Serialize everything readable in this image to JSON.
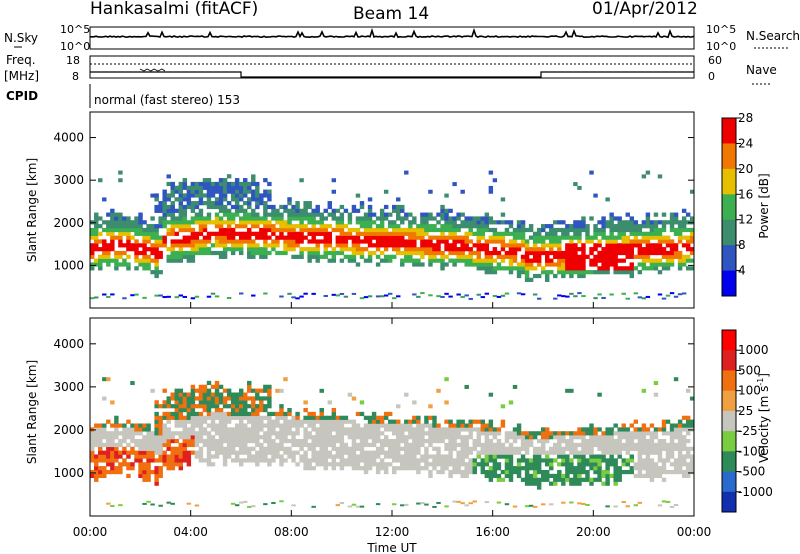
{
  "header": {
    "station": "Hankasalmi (fitACF)",
    "beam": "Beam 14",
    "date": "01/Apr/2012"
  },
  "side_labels": {
    "nsky": "N.Sky",
    "freq_top": "Freq.",
    "freq_unit": "[MHz]",
    "cpid": "CPID",
    "nsearch": "N.Search",
    "nave": "Nave"
  },
  "noise_panel": {
    "ticks_left": [
      "10^5",
      "10^0"
    ],
    "ticks_right": [
      "10^5",
      "10^0"
    ]
  },
  "freq_panel": {
    "ticks_left": [
      "18",
      "8"
    ],
    "ticks_right": [
      "60",
      "0"
    ]
  },
  "cpid_label": "normal (fast stereo) 153",
  "chart_data": [
    {
      "type": "heatmap",
      "name": "power",
      "ylabel": "Slant Range [km]",
      "ylim": [
        0,
        4600
      ],
      "yticks": [
        "1000",
        "2000",
        "3000",
        "4000"
      ],
      "colorbar": {
        "label": "Power [dB]",
        "ticks": [
          "4",
          "8",
          "12",
          "16",
          "20",
          "24",
          "28"
        ],
        "colors": [
          "#0000ee",
          "#2f55c0",
          "#3c8c6e",
          "#3cb050",
          "#e6c000",
          "#f07800",
          "#ee0000"
        ]
      }
    },
    {
      "type": "heatmap",
      "name": "velocity",
      "ylabel": "Slant Range [km]",
      "ylim": [
        0,
        4600
      ],
      "yticks": [
        "1000",
        "2000",
        "3000",
        "4000"
      ],
      "colorbar": {
        "label": "Velocity [m s",
        "label_sup": "-1",
        "label_end": "]",
        "ticks": [
          "1000",
          "500",
          "100",
          "25",
          "-25",
          "-100",
          "-500",
          "-1000"
        ],
        "colors": [
          "#1030b0",
          "#2a6acc",
          "#2e8a58",
          "#7acc40",
          "#c6c6be",
          "#f0a040",
          "#f07010",
          "#e02020",
          "#ff0000"
        ]
      }
    }
  ],
  "x_axis": {
    "label": "Time UT",
    "ticks": [
      "00:00",
      "04:00",
      "08:00",
      "12:00",
      "16:00",
      "20:00",
      "00:00"
    ]
  }
}
